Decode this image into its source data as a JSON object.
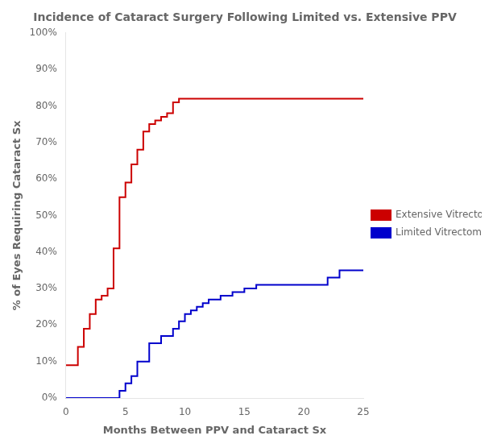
{
  "chart_data": {
    "type": "line",
    "title": "Incidence of Cataract Surgery Following Limited vs. Extensive PPV",
    "xlabel": "Months Between PPV and Cataract Sx",
    "ylabel": "% of Eyes Requiring Cataract Sx",
    "xlim": [
      0,
      25
    ],
    "ylim": [
      0,
      100
    ],
    "xticks": [
      0,
      5,
      10,
      15,
      20,
      25
    ],
    "yticks": [
      {
        "value": 0,
        "label": "0%"
      },
      {
        "value": 10,
        "label": "10%"
      },
      {
        "value": 20,
        "label": "20%"
      },
      {
        "value": 30,
        "label": "30%"
      },
      {
        "value": 40,
        "label": "40%"
      },
      {
        "value": 50,
        "label": "50%"
      },
      {
        "value": 60,
        "label": "60%"
      },
      {
        "value": 70,
        "label": "70%"
      },
      {
        "value": 80,
        "label": "80%"
      },
      {
        "value": 90,
        "label": "90%"
      },
      {
        "value": 100,
        "label": "100%"
      }
    ],
    "grid": false,
    "legend": "right",
    "series": [
      {
        "name": "Extensive Vitrectomy",
        "color": "#cc0000",
        "x": [
          0,
          1,
          1,
          1.5,
          1.5,
          2,
          2,
          2.5,
          2.5,
          3,
          3,
          3.5,
          3.5,
          4,
          4,
          4.5,
          4.5,
          5,
          5,
          5.5,
          5.5,
          6,
          6,
          6.5,
          6.5,
          7,
          7,
          7.5,
          7.5,
          8,
          8,
          8.5,
          8.5,
          9,
          9,
          9.5,
          9.5,
          10,
          10,
          13,
          13,
          25
        ],
        "values": [
          9,
          9,
          14,
          14,
          19,
          19,
          23,
          23,
          27,
          27,
          28,
          28,
          30,
          30,
          41,
          41,
          55,
          55,
          59,
          59,
          64,
          64,
          68,
          68,
          73,
          73,
          75,
          75,
          76,
          76,
          77,
          77,
          78,
          78,
          81,
          81,
          82,
          82,
          82,
          82,
          82,
          82
        ]
      },
      {
        "name": "Limited Vitrectomy",
        "color": "#0000cc",
        "x": [
          0,
          4.5,
          4.5,
          5,
          5,
          5.5,
          5.5,
          6,
          6,
          7,
          7,
          8,
          8,
          9,
          9,
          9.5,
          9.5,
          10,
          10,
          10.5,
          10.5,
          11,
          11,
          11.5,
          11.5,
          12,
          12,
          13,
          13,
          14,
          14,
          15,
          15,
          16,
          16,
          17,
          17,
          22,
          22,
          23,
          23,
          24,
          24,
          25
        ],
        "values": [
          0,
          0,
          2,
          2,
          4,
          4,
          6,
          6,
          10,
          10,
          15,
          15,
          17,
          17,
          19,
          19,
          21,
          21,
          23,
          23,
          24,
          24,
          25,
          25,
          26,
          26,
          27,
          27,
          28,
          28,
          29,
          29,
          30,
          30,
          31,
          31,
          31,
          31,
          33,
          33,
          35,
          35,
          35,
          35
        ]
      }
    ]
  }
}
